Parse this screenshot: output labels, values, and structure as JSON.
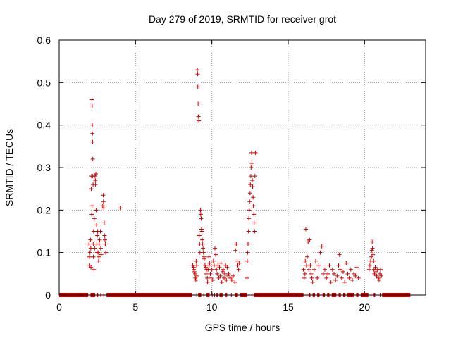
{
  "chart_data": {
    "type": "scatter",
    "title": "Day 279 of 2019, SRMTID for receiver grot",
    "xlabel": "GPS time / hours",
    "ylabel": "SRMTID / TECUs",
    "xlim": [
      0,
      24
    ],
    "ylim": [
      0,
      0.6
    ],
    "x_ticks": [
      0,
      5,
      10,
      15,
      20
    ],
    "y_ticks": [
      0,
      0.1,
      0.2,
      0.3,
      0.4,
      0.5,
      0.6
    ],
    "x_tick_labels": [
      "0",
      "5",
      "10",
      "15",
      "20"
    ],
    "y_tick_labels": [
      "0",
      "0.1",
      "0.2",
      "0.3",
      "0.4",
      "0.5",
      "0.6"
    ],
    "grid": true,
    "marker": "+",
    "marker_color": "#d00000",
    "series": [
      {
        "name": "SRMTID",
        "points": [
          [
            1.95,
            0.12
          ],
          [
            1.98,
            0.09
          ],
          [
            2.0,
            0.07
          ],
          [
            2.02,
            0.1
          ],
          [
            2.05,
            0.13
          ],
          [
            2.07,
            0.11
          ],
          [
            2.08,
            0.065
          ],
          [
            2.1,
            0.25
          ],
          [
            2.12,
            0.28
          ],
          [
            2.13,
            0.19
          ],
          [
            2.15,
            0.21
          ],
          [
            2.15,
            0.46
          ],
          [
            2.16,
            0.445
          ],
          [
            2.17,
            0.4
          ],
          [
            2.18,
            0.38
          ],
          [
            2.19,
            0.36
          ],
          [
            2.2,
            0.32
          ],
          [
            2.2,
            0.28
          ],
          [
            2.22,
            0.26
          ],
          [
            2.23,
            0.12
          ],
          [
            2.24,
            0.09
          ],
          [
            2.25,
            0.15
          ],
          [
            2.28,
            0.06
          ],
          [
            2.3,
            0.18
          ],
          [
            2.32,
            0.11
          ],
          [
            2.35,
            0.28
          ],
          [
            2.37,
            0.27
          ],
          [
            2.38,
            0.26
          ],
          [
            2.4,
            0.285
          ],
          [
            2.42,
            0.2
          ],
          [
            2.45,
            0.165
          ],
          [
            2.46,
            0.12
          ],
          [
            2.48,
            0.1
          ],
          [
            2.5,
            0.14
          ],
          [
            2.52,
            0.15
          ],
          [
            2.55,
            0.1
          ],
          [
            2.58,
            0.08
          ],
          [
            2.6,
            0.09
          ],
          [
            2.62,
            0.12
          ],
          [
            2.65,
            0.13
          ],
          [
            2.7,
            0.15
          ],
          [
            2.72,
            0.11
          ],
          [
            2.75,
            0.095
          ],
          [
            2.85,
            0.21
          ],
          [
            2.88,
            0.235
          ],
          [
            2.9,
            0.22
          ],
          [
            2.92,
            0.205
          ],
          [
            2.95,
            0.17
          ],
          [
            2.97,
            0.14
          ],
          [
            3.0,
            0.13
          ],
          [
            3.02,
            0.12
          ],
          [
            3.05,
            0.1
          ],
          [
            4.0,
            0.205
          ],
          [
            8.75,
            0.07
          ],
          [
            8.8,
            0.065
          ],
          [
            8.82,
            0.06
          ],
          [
            8.85,
            0.055
          ],
          [
            8.9,
            0.05
          ],
          [
            8.92,
            0.04
          ],
          [
            8.95,
            0.035
          ],
          [
            8.97,
            0.08
          ],
          [
            9.0,
            0.07
          ],
          [
            9.02,
            0.045
          ],
          [
            9.05,
            0.53
          ],
          [
            9.07,
            0.52
          ],
          [
            9.08,
            0.49
          ],
          [
            9.1,
            0.45
          ],
          [
            9.12,
            0.42
          ],
          [
            9.15,
            0.41
          ],
          [
            9.17,
            0.14
          ],
          [
            9.2,
            0.12
          ],
          [
            9.22,
            0.1
          ],
          [
            9.25,
            0.2
          ],
          [
            9.27,
            0.19
          ],
          [
            9.3,
            0.18
          ],
          [
            9.32,
            0.155
          ],
          [
            9.35,
            0.15
          ],
          [
            9.37,
            0.13
          ],
          [
            9.4,
            0.12
          ],
          [
            9.42,
            0.11
          ],
          [
            9.45,
            0.1
          ],
          [
            9.48,
            0.09
          ],
          [
            9.5,
            0.085
          ],
          [
            9.55,
            0.07
          ],
          [
            9.6,
            0.065
          ],
          [
            9.62,
            0.05
          ],
          [
            9.65,
            0.06
          ],
          [
            9.7,
            0.04
          ],
          [
            9.72,
            0.03
          ],
          [
            9.75,
            0.06
          ],
          [
            9.8,
            0.09
          ],
          [
            9.82,
            0.07
          ],
          [
            9.85,
            0.075
          ],
          [
            9.9,
            0.05
          ],
          [
            9.95,
            0.04
          ],
          [
            10.0,
            0.06
          ],
          [
            10.05,
            0.035
          ],
          [
            10.1,
            0.08
          ],
          [
            10.15,
            0.07
          ],
          [
            10.2,
            0.11
          ],
          [
            10.25,
            0.095
          ],
          [
            10.3,
            0.06
          ],
          [
            10.35,
            0.05
          ],
          [
            10.4,
            0.07
          ],
          [
            10.45,
            0.04
          ],
          [
            10.5,
            0.065
          ],
          [
            10.55,
            0.045
          ],
          [
            10.6,
            0.075
          ],
          [
            10.65,
            0.03
          ],
          [
            10.7,
            0.055
          ],
          [
            10.75,
            0.06
          ],
          [
            10.8,
            0.04
          ],
          [
            10.85,
            0.05
          ],
          [
            10.9,
            0.07
          ],
          [
            10.95,
            0.035
          ],
          [
            11.0,
            0.065
          ],
          [
            11.05,
            0.045
          ],
          [
            11.1,
            0.05
          ],
          [
            11.2,
            0.04
          ],
          [
            11.3,
            0.035
          ],
          [
            11.4,
            0.045
          ],
          [
            11.5,
            0.03
          ],
          [
            11.55,
            0.105
          ],
          [
            11.6,
            0.12
          ],
          [
            11.65,
            0.08
          ],
          [
            11.7,
            0.07
          ],
          [
            11.75,
            0.06
          ],
          [
            11.8,
            0.075
          ],
          [
            12.3,
            0.04
          ],
          [
            12.32,
            0.08
          ],
          [
            12.35,
            0.1
          ],
          [
            12.37,
            0.12
          ],
          [
            12.4,
            0.15
          ],
          [
            12.42,
            0.18
          ],
          [
            12.45,
            0.2
          ],
          [
            12.47,
            0.22
          ],
          [
            12.5,
            0.24
          ],
          [
            12.52,
            0.26
          ],
          [
            12.55,
            0.28
          ],
          [
            12.57,
            0.3
          ],
          [
            12.6,
            0.335
          ],
          [
            12.62,
            0.31
          ],
          [
            12.65,
            0.27
          ],
          [
            12.67,
            0.255
          ],
          [
            12.7,
            0.23
          ],
          [
            12.72,
            0.21
          ],
          [
            12.75,
            0.19
          ],
          [
            12.77,
            0.17
          ],
          [
            12.8,
            0.15
          ],
          [
            12.82,
            0.28
          ],
          [
            12.85,
            0.335
          ],
          [
            16.0,
            0.06
          ],
          [
            16.05,
            0.04
          ],
          [
            16.1,
            0.05
          ],
          [
            16.12,
            0.08
          ],
          [
            16.15,
            0.155
          ],
          [
            16.2,
            0.07
          ],
          [
            16.25,
            0.09
          ],
          [
            16.3,
            0.125
          ],
          [
            16.35,
            0.06
          ],
          [
            16.4,
            0.13
          ],
          [
            16.45,
            0.07
          ],
          [
            16.5,
            0.05
          ],
          [
            16.55,
            0.04
          ],
          [
            16.6,
            0.03
          ],
          [
            16.7,
            0.06
          ],
          [
            16.8,
            0.08
          ],
          [
            16.9,
            0.04
          ],
          [
            17.0,
            0.07
          ],
          [
            17.1,
            0.1
          ],
          [
            17.2,
            0.115
          ],
          [
            17.3,
            0.05
          ],
          [
            17.4,
            0.06
          ],
          [
            17.5,
            0.04
          ],
          [
            17.6,
            0.05
          ],
          [
            17.7,
            0.07
          ],
          [
            17.8,
            0.03
          ],
          [
            17.9,
            0.06
          ],
          [
            18.0,
            0.05
          ],
          [
            18.1,
            0.035
          ],
          [
            18.2,
            0.045
          ],
          [
            18.3,
            0.07
          ],
          [
            18.35,
            0.095
          ],
          [
            18.4,
            0.06
          ],
          [
            18.5,
            0.04
          ],
          [
            18.6,
            0.055
          ],
          [
            18.7,
            0.03
          ],
          [
            18.8,
            0.075
          ],
          [
            18.9,
            0.05
          ],
          [
            19.0,
            0.04
          ],
          [
            19.1,
            0.06
          ],
          [
            19.2,
            0.035
          ],
          [
            19.3,
            0.05
          ],
          [
            19.4,
            0.045
          ],
          [
            19.5,
            0.065
          ],
          [
            19.6,
            0.04
          ],
          [
            20.3,
            0.06
          ],
          [
            20.35,
            0.07
          ],
          [
            20.4,
            0.08
          ],
          [
            20.45,
            0.09
          ],
          [
            20.48,
            0.105
          ],
          [
            20.5,
            0.125
          ],
          [
            20.52,
            0.11
          ],
          [
            20.55,
            0.095
          ],
          [
            20.6,
            0.08
          ],
          [
            20.62,
            0.06
          ],
          [
            20.65,
            0.05
          ],
          [
            20.7,
            0.065
          ],
          [
            20.75,
            0.055
          ],
          [
            20.8,
            0.045
          ],
          [
            20.85,
            0.06
          ],
          [
            20.9,
            0.04
          ],
          [
            20.95,
            0.035
          ],
          [
            21.0,
            0.05
          ],
          [
            21.05,
            0.06
          ],
          [
            21.1,
            0.045
          ]
        ],
        "zero_segments": [
          [
            0.0,
            1.9
          ],
          [
            2.05,
            2.35
          ],
          [
            2.45,
            2.55
          ],
          [
            2.7,
            2.75
          ],
          [
            2.9,
            2.95
          ],
          [
            3.1,
            8.7
          ],
          [
            8.95,
            8.97
          ],
          [
            9.1,
            9.3
          ],
          [
            9.45,
            9.5
          ],
          [
            9.65,
            9.85
          ],
          [
            10.0,
            10.05
          ],
          [
            10.15,
            10.2
          ],
          [
            10.3,
            10.4
          ],
          [
            10.5,
            10.7
          ],
          [
            10.9,
            11.0
          ],
          [
            11.25,
            11.3
          ],
          [
            11.5,
            11.7
          ],
          [
            11.85,
            12.3
          ],
          [
            12.6,
            12.65
          ],
          [
            12.75,
            16.0
          ],
          [
            16.2,
            16.25
          ],
          [
            16.35,
            16.45
          ],
          [
            16.6,
            16.75
          ],
          [
            16.9,
            17.05
          ],
          [
            17.25,
            17.4
          ],
          [
            17.55,
            17.7
          ],
          [
            17.85,
            18.15
          ],
          [
            18.3,
            18.45
          ],
          [
            18.6,
            18.75
          ],
          [
            18.85,
            19.3
          ],
          [
            19.45,
            19.6
          ],
          [
            19.75,
            20.25
          ],
          [
            20.4,
            20.45
          ],
          [
            20.6,
            20.7
          ],
          [
            21.0,
            21.05
          ],
          [
            21.15,
            23.0
          ]
        ]
      }
    ]
  }
}
